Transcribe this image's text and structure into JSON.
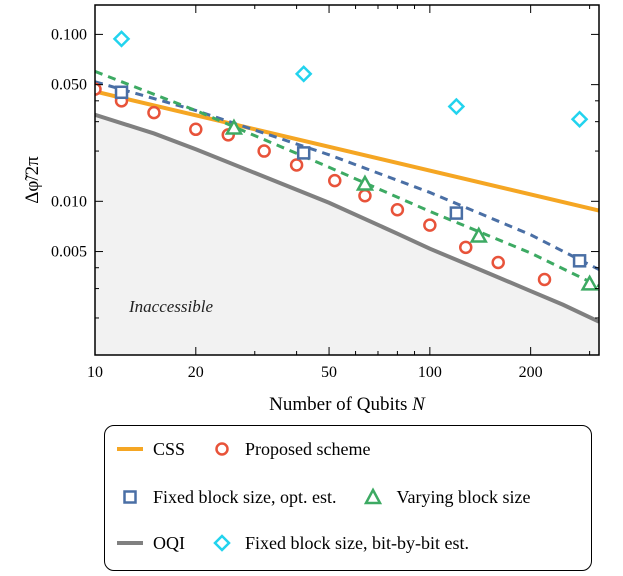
{
  "chart_data": {
    "type": "scatter",
    "title": "",
    "xlabel": "Number of Qubits N",
    "ylabel": "Δφ̃/2π",
    "xscale": "log",
    "yscale": "log",
    "xlim": [
      10,
      320
    ],
    "ylim": [
      0.0012,
      0.15
    ],
    "xticks": [
      10,
      20,
      50,
      100,
      200
    ],
    "xtick_labels": [
      "10",
      "20",
      "50",
      "100",
      "200"
    ],
    "yticks": [
      0.005,
      0.01,
      0.05,
      0.1
    ],
    "ytick_labels": [
      "0.005",
      "0.010",
      "0.050",
      "0.100"
    ],
    "grid": false,
    "annotation": "Inaccessible",
    "legend_position": "below",
    "series": [
      {
        "name": "CSS",
        "kind": "line",
        "color": "#f5a623",
        "dash": "solid",
        "x": [
          10,
          320
        ],
        "y": [
          0.0455,
          0.0088
        ]
      },
      {
        "name": "OQI",
        "kind": "line",
        "color": "#808080",
        "dash": "solid",
        "fill_below": true,
        "x": [
          10,
          15,
          20,
          30,
          50,
          80,
          100,
          150,
          200,
          250,
          320
        ],
        "y": [
          0.033,
          0.0255,
          0.0205,
          0.0148,
          0.0098,
          0.0064,
          0.0052,
          0.0037,
          0.0029,
          0.0024,
          0.0019
        ]
      },
      {
        "name": "Proposed scheme",
        "kind": "marker",
        "marker": "circle",
        "color": "#e8533a",
        "x": [
          10,
          12,
          15,
          20,
          25,
          32,
          40,
          52,
          64,
          80,
          100,
          128,
          160,
          220
        ],
        "y": [
          0.047,
          0.04,
          0.034,
          0.027,
          0.025,
          0.02,
          0.0165,
          0.0133,
          0.0108,
          0.0089,
          0.0072,
          0.0053,
          0.0043,
          0.0034
        ]
      },
      {
        "name": "Fixed block size, opt. est.",
        "kind": "marker",
        "marker": "square",
        "color": "#4a6fa5",
        "x": [
          12,
          42,
          120,
          280
        ],
        "y": [
          0.045,
          0.0195,
          0.0085,
          0.0044
        ]
      },
      {
        "name": "fixed-opt-fit",
        "kind": "line",
        "color": "#4a6fa5",
        "dash": "dashed",
        "x": [
          10,
          20,
          50,
          100,
          200,
          320
        ],
        "y": [
          0.052,
          0.035,
          0.019,
          0.0113,
          0.0063,
          0.0039
        ]
      },
      {
        "name": "Varying block size",
        "kind": "marker",
        "marker": "triangle",
        "color": "#3daa63",
        "x": [
          26,
          64,
          140,
          300
        ],
        "y": [
          0.0275,
          0.0127,
          0.0062,
          0.0032
        ]
      },
      {
        "name": "varying-fit",
        "kind": "line",
        "color": "#3daa63",
        "dash": "dashed",
        "x": [
          10,
          20,
          50,
          100,
          200,
          320
        ],
        "y": [
          0.06,
          0.035,
          0.016,
          0.0087,
          0.0049,
          0.0031
        ]
      },
      {
        "name": "Fixed block size, bit-by-bit est.",
        "kind": "marker",
        "marker": "diamond",
        "color": "#22d3ee",
        "x": [
          12,
          42,
          120,
          280
        ],
        "y": [
          0.094,
          0.058,
          0.037,
          0.031
        ]
      }
    ]
  },
  "legend": {
    "rows": [
      [
        {
          "label": "CSS",
          "symbol": "line",
          "color": "#f5a623"
        },
        {
          "label": "Proposed scheme",
          "symbol": "circle",
          "color": "#e8533a"
        }
      ],
      [
        {
          "label": "Fixed block size, opt. est.",
          "symbol": "square",
          "color": "#4a6fa5"
        },
        {
          "label": "Varying block size",
          "symbol": "triangle",
          "color": "#3daa63"
        }
      ],
      [
        {
          "label": "OQI",
          "symbol": "line",
          "color": "#808080"
        },
        {
          "label": "Fixed block size, bit-by-bit est.",
          "symbol": "diamond",
          "color": "#22d3ee"
        }
      ]
    ]
  }
}
